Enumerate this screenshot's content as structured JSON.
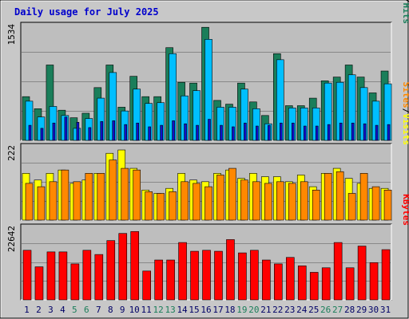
{
  "title": "Daily usage for July 2025",
  "colors": {
    "frame_bg": "#c8c8c8",
    "plot_bg": "#bebebe",
    "title": "#0000cc",
    "hits": "#1a7e5a",
    "files": "#00bfff",
    "pages": "#1010cc",
    "visits": "#ffff00",
    "sites": "#ff8800",
    "kbytes": "#ff0000",
    "weekend_label": "#1a7e5a",
    "weekday_label": "#000066"
  },
  "chart_data": [
    {
      "type": "bar",
      "panel": "hits-files-pages",
      "ymax_label": "1534",
      "legend": [
        "Pages",
        "/",
        "Files",
        "/",
        "Hits"
      ],
      "categories": [
        "1",
        "2",
        "3",
        "4",
        "5",
        "6",
        "7",
        "8",
        "9",
        "10",
        "11",
        "12",
        "13",
        "14",
        "15",
        "16",
        "17",
        "18",
        "19",
        "20",
        "21",
        "22",
        "23",
        "24",
        "25",
        "26",
        "27",
        "28",
        "29",
        "30",
        "31"
      ],
      "weekend": [
        5,
        6,
        12,
        13,
        19,
        20,
        26,
        27
      ],
      "ylim": [
        0,
        1534
      ],
      "series": [
        {
          "name": "Hits",
          "values": [
            580,
            420,
            1000,
            400,
            300,
            360,
            700,
            1000,
            440,
            850,
            580,
            580,
            1230,
            770,
            760,
            1500,
            530,
            480,
            760,
            510,
            330,
            1150,
            460,
            460,
            560,
            790,
            840,
            1000,
            840,
            630,
            920
          ]
        },
        {
          "name": "Files",
          "values": [
            520,
            310,
            450,
            330,
            160,
            290,
            560,
            900,
            390,
            680,
            490,
            500,
            1150,
            590,
            660,
            1340,
            440,
            440,
            680,
            420,
            220,
            1070,
            430,
            430,
            430,
            760,
            770,
            870,
            700,
            520,
            750
          ]
        },
        {
          "name": "Pages",
          "values": [
            200,
            160,
            230,
            310,
            240,
            170,
            250,
            260,
            210,
            230,
            180,
            200,
            260,
            220,
            200,
            280,
            200,
            180,
            230,
            190,
            200,
            230,
            230,
            190,
            190,
            210,
            230,
            230,
            220,
            200,
            210
          ]
        }
      ]
    },
    {
      "type": "bar",
      "panel": "visits-sites",
      "ymax_label": "222",
      "legend": [
        "Sites",
        "/",
        "Visits"
      ],
      "categories": [
        "1",
        "2",
        "3",
        "4",
        "5",
        "6",
        "7",
        "8",
        "9",
        "10",
        "11",
        "12",
        "13",
        "14",
        "15",
        "16",
        "17",
        "18",
        "19",
        "20",
        "21",
        "22",
        "23",
        "24",
        "25",
        "26",
        "27",
        "28",
        "29",
        "30",
        "31"
      ],
      "weekend": [
        5,
        6,
        12,
        13,
        19,
        20,
        26,
        27
      ],
      "ylim": [
        0,
        222
      ],
      "series": [
        {
          "name": "Visits",
          "values": [
            140,
            120,
            140,
            150,
            110,
            120,
            140,
            200,
            210,
            155,
            90,
            80,
            95,
            140,
            120,
            115,
            140,
            150,
            125,
            140,
            130,
            130,
            115,
            135,
            100,
            140,
            155,
            125,
            110,
            95,
            95
          ]
        },
        {
          "name": "Sites",
          "values": [
            110,
            100,
            115,
            150,
            115,
            140,
            140,
            180,
            155,
            150,
            85,
            80,
            85,
            115,
            110,
            100,
            135,
            155,
            120,
            115,
            110,
            115,
            110,
            115,
            90,
            140,
            145,
            80,
            140,
            100,
            90
          ]
        }
      ]
    },
    {
      "type": "bar",
      "panel": "kbytes",
      "ymax_label": "22642",
      "legend": [
        "KBytes"
      ],
      "categories": [
        "1",
        "2",
        "3",
        "4",
        "5",
        "6",
        "7",
        "8",
        "9",
        "10",
        "11",
        "12",
        "13",
        "14",
        "15",
        "16",
        "17",
        "18",
        "19",
        "20",
        "21",
        "22",
        "23",
        "24",
        "25",
        "26",
        "27",
        "28",
        "29",
        "30",
        "31"
      ],
      "weekend": [
        5,
        6,
        12,
        13,
        19,
        20,
        26,
        27
      ],
      "ylim": [
        0,
        22642
      ],
      "series": [
        {
          "name": "KBytes",
          "values": [
            15300,
            10200,
            14800,
            14800,
            11100,
            15300,
            14000,
            18300,
            20500,
            21100,
            8900,
            12300,
            12300,
            17700,
            15000,
            15300,
            15000,
            18600,
            14500,
            15300,
            12300,
            11100,
            13100,
            10500,
            8500,
            9900,
            17700,
            9900,
            16600,
            11500,
            15500
          ]
        }
      ]
    }
  ]
}
